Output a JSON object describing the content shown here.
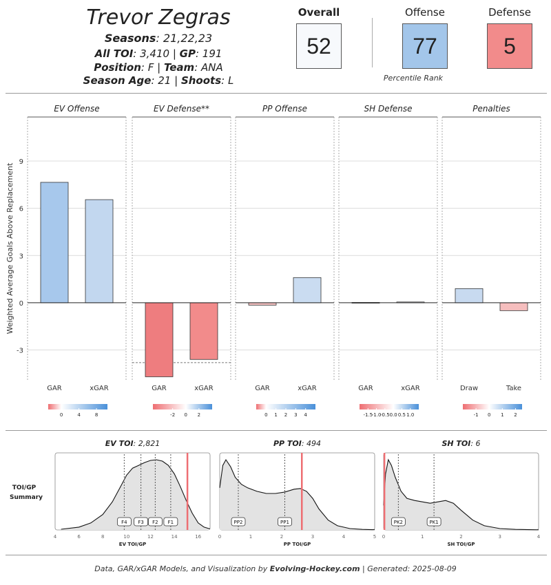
{
  "player": {
    "name": "Trevor Zegras",
    "seasons_label": "Seasons",
    "seasons": ": 21,22,23",
    "toi_label": "All TOI",
    "toi": ": 3,410 | ",
    "gp_label": "GP",
    "gp": ": 191",
    "position_label": "Position",
    "position": ": F | ",
    "team_label": "Team",
    "team": ": ANA",
    "age_label": "Season Age",
    "age": ": 21 | ",
    "shoots_label": "Shoots",
    "shoots": ": L"
  },
  "scores": {
    "overall_label": "Overall",
    "overall": "52",
    "offense_label": "Offense",
    "offense": "77",
    "defense_label": "Defense",
    "defense": "5",
    "percentile_label": "Percentile Rank",
    "colors": {
      "overall": "#f7f9fc",
      "offense": "#a3c6ea",
      "defense": "#f28b8b"
    }
  },
  "chart_data": [
    {
      "type": "bar",
      "ylabel": "Weighted Average Goals Above Replacement",
      "ylim": [
        -4.9,
        11.8
      ],
      "yticks": [
        -3,
        0,
        3,
        6,
        9
      ],
      "grid": true,
      "panels": [
        {
          "title": "EV Offense",
          "categories": [
            "GAR",
            "xGAR"
          ],
          "values": [
            7.65,
            6.55
          ],
          "colors": [
            "#a7c8ec",
            "#c2d7ef"
          ],
          "legend_ticks": [
            "0",
            "4",
            "8"
          ],
          "legend_min": -3,
          "legend_max": 10.5,
          "legend_tick_values": [
            0,
            4,
            8
          ]
        },
        {
          "title": "EV Defense**",
          "categories": [
            "GAR",
            "xGAR"
          ],
          "values": [
            -4.7,
            -3.6
          ],
          "colors": [
            "#ee7d7f",
            "#f28b8b"
          ],
          "reference_line": -3.8,
          "legend_ticks": [
            "-2",
            "0",
            "2"
          ],
          "legend_min": -5,
          "legend_max": 4,
          "legend_tick_values": [
            -2,
            0,
            2
          ]
        },
        {
          "title": "PP Offense",
          "categories": [
            "GAR",
            "xGAR"
          ],
          "values": [
            -0.15,
            1.6
          ],
          "colors": [
            "#f6c2c2",
            "#cadcf1"
          ],
          "legend_ticks": [
            "0",
            "1",
            "2",
            "3",
            "4"
          ],
          "legend_min": -1,
          "legend_max": 5,
          "legend_tick_values": [
            0,
            1,
            2,
            3,
            4
          ]
        },
        {
          "title": "SH Defense",
          "categories": [
            "GAR",
            "xGAR"
          ],
          "values": [
            0.02,
            0.05
          ],
          "colors": [
            "#f4f4f4",
            "#eef2f8"
          ],
          "legend_ticks": [
            "-1.5",
            "-1.0",
            "-0.5",
            "0.0",
            "0.5",
            "1.0"
          ],
          "legend_min": -2,
          "legend_max": 1.5,
          "legend_tick_values": [
            -1.5,
            -1.0,
            -0.5,
            0.0,
            0.5,
            1.0
          ]
        },
        {
          "title": "Penalties",
          "categories": [
            "Draw",
            "Take"
          ],
          "values": [
            0.9,
            -0.5
          ],
          "colors": [
            "#c8daf0",
            "#f6bebe"
          ],
          "legend_ticks": [
            "-1",
            "0",
            "1",
            "2"
          ],
          "legend_min": -2,
          "legend_max": 2.5,
          "legend_tick_values": [
            -1,
            0,
            1,
            2
          ]
        }
      ]
    },
    {
      "type": "area",
      "row_label_1": "TOI/GP",
      "row_label_2": "Summary",
      "panels": [
        {
          "title_label": "EV TOI",
          "title_value": ": 2,821",
          "xlabel": "EV TOI/GP",
          "xlim": [
            4,
            17
          ],
          "xticks": [
            4,
            6,
            8,
            10,
            12,
            14,
            16
          ],
          "player_value": 15.1,
          "markers": [
            {
              "label": "F4",
              "x": 9.8
            },
            {
              "label": "F3",
              "x": 11.2
            },
            {
              "label": "F2",
              "x": 12.4
            },
            {
              "label": "F1",
              "x": 13.7
            }
          ],
          "density_x": [
            4.5,
            6,
            7,
            8,
            8.8,
            9.5,
            10,
            10.5,
            11,
            11.5,
            12,
            12.5,
            13,
            13.5,
            14,
            14.5,
            15,
            15.5,
            16,
            16.5,
            17
          ],
          "density_y": [
            0.01,
            0.04,
            0.1,
            0.22,
            0.4,
            0.62,
            0.78,
            0.88,
            0.92,
            0.96,
            0.99,
            1.0,
            0.98,
            0.92,
            0.8,
            0.62,
            0.42,
            0.24,
            0.1,
            0.04,
            0.015
          ]
        },
        {
          "title_label": "PP TOI",
          "title_value": ": 494",
          "xlabel": "PP TOI/GP",
          "xlim": [
            0,
            5
          ],
          "xticks": [
            0,
            1,
            2,
            3,
            4,
            5
          ],
          "player_value": 2.65,
          "markers": [
            {
              "label": "PP2",
              "x": 0.6
            },
            {
              "label": "PP1",
              "x": 2.1
            }
          ],
          "density_x": [
            0,
            0.1,
            0.2,
            0.35,
            0.5,
            0.7,
            0.9,
            1.2,
            1.5,
            1.8,
            2.1,
            2.4,
            2.6,
            2.8,
            3.0,
            3.2,
            3.5,
            3.8,
            4.2,
            4.6,
            5.0
          ],
          "density_y": [
            0.6,
            0.92,
            1.0,
            0.9,
            0.75,
            0.65,
            0.6,
            0.55,
            0.52,
            0.52,
            0.54,
            0.58,
            0.59,
            0.55,
            0.45,
            0.3,
            0.14,
            0.06,
            0.02,
            0.008,
            0.003
          ]
        },
        {
          "title_label": "SH TOI",
          "title_value": ": 6",
          "xlabel": "SH TOI/GP",
          "xlim": [
            0,
            4
          ],
          "xticks": [
            0,
            1,
            2,
            3,
            4
          ],
          "player_value": 0.02,
          "markers": [
            {
              "label": "PK2",
              "x": 0.38
            },
            {
              "label": "PK1",
              "x": 1.3
            }
          ],
          "density_x": [
            0,
            0.05,
            0.12,
            0.2,
            0.3,
            0.45,
            0.6,
            0.8,
            1.0,
            1.2,
            1.4,
            1.6,
            1.8,
            2.0,
            2.3,
            2.6,
            3.0,
            3.4,
            4.0
          ],
          "density_y": [
            0.35,
            0.8,
            1.0,
            0.92,
            0.75,
            0.55,
            0.45,
            0.42,
            0.4,
            0.38,
            0.4,
            0.42,
            0.38,
            0.28,
            0.14,
            0.06,
            0.02,
            0.008,
            0.002
          ]
        }
      ]
    }
  ],
  "footer": {
    "text_before": "Data, GAR/xGAR Models, and Visualization by ",
    "brand": "Evolving-Hockey.com",
    "text_after": " | Generated: 2025-08-09"
  }
}
